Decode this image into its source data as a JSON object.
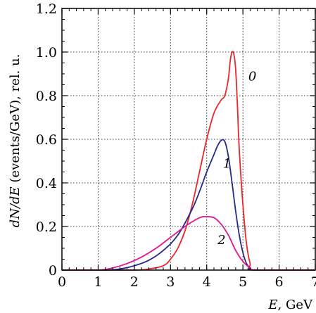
{
  "chart_data": {
    "type": "line",
    "xlabel_var": "E",
    "xlabel_unit": ", GeV",
    "ylabel_var": "dN/dE",
    "ylabel_unit": " (events/GeV), rel. u.",
    "xlim": [
      0,
      7
    ],
    "ylim": [
      0,
      1.2
    ],
    "x_ticks": [
      "0",
      "1",
      "2",
      "3",
      "4",
      "5",
      "6",
      "7"
    ],
    "y_ticks": [
      "0",
      "0.2",
      "0.4",
      "0.6",
      "0.8",
      "1.0",
      "1.2"
    ],
    "grid": true,
    "series": [
      {
        "name": "0",
        "color": "#e8262b",
        "label_at": [
          5.15,
          0.87
        ],
        "x": [
          0,
          2.0,
          2.4,
          2.8,
          3.0,
          3.2,
          3.4,
          3.6,
          3.8,
          4.0,
          4.2,
          4.4,
          4.5,
          4.6,
          4.65,
          4.7,
          4.75,
          4.8,
          4.85,
          4.9,
          5.0,
          5.1,
          5.2,
          5.3,
          7
        ],
        "y": [
          0,
          0,
          0.005,
          0.02,
          0.05,
          0.1,
          0.18,
          0.3,
          0.45,
          0.6,
          0.72,
          0.78,
          0.8,
          0.88,
          0.96,
          1.0,
          0.99,
          0.92,
          0.75,
          0.55,
          0.3,
          0.12,
          0.03,
          0.0,
          0
        ]
      },
      {
        "name": "1",
        "color": "#232a8a",
        "label_at": [
          4.45,
          0.47
        ],
        "x": [
          0,
          1.2,
          1.6,
          2.0,
          2.4,
          2.8,
          3.2,
          3.6,
          3.8,
          4.0,
          4.2,
          4.3,
          4.4,
          4.5,
          4.6,
          4.7,
          4.8,
          4.9,
          5.0,
          5.1,
          5.2,
          5.3,
          7
        ],
        "y": [
          0,
          0,
          0.005,
          0.02,
          0.045,
          0.09,
          0.16,
          0.28,
          0.36,
          0.45,
          0.53,
          0.57,
          0.595,
          0.59,
          0.52,
          0.4,
          0.27,
          0.16,
          0.08,
          0.03,
          0.01,
          0.0,
          0
        ]
      },
      {
        "name": "2",
        "color": "#e0168c",
        "label_at": [
          4.3,
          0.12
        ],
        "x": [
          0,
          1.0,
          1.4,
          1.8,
          2.2,
          2.6,
          3.0,
          3.4,
          3.8,
          4.0,
          4.2,
          4.4,
          4.6,
          4.8,
          5.0,
          5.2,
          5.4,
          7
        ],
        "y": [
          0,
          0,
          0.01,
          0.03,
          0.06,
          0.1,
          0.15,
          0.2,
          0.24,
          0.245,
          0.24,
          0.21,
          0.16,
          0.09,
          0.04,
          0.01,
          0.0,
          0
        ]
      }
    ]
  }
}
